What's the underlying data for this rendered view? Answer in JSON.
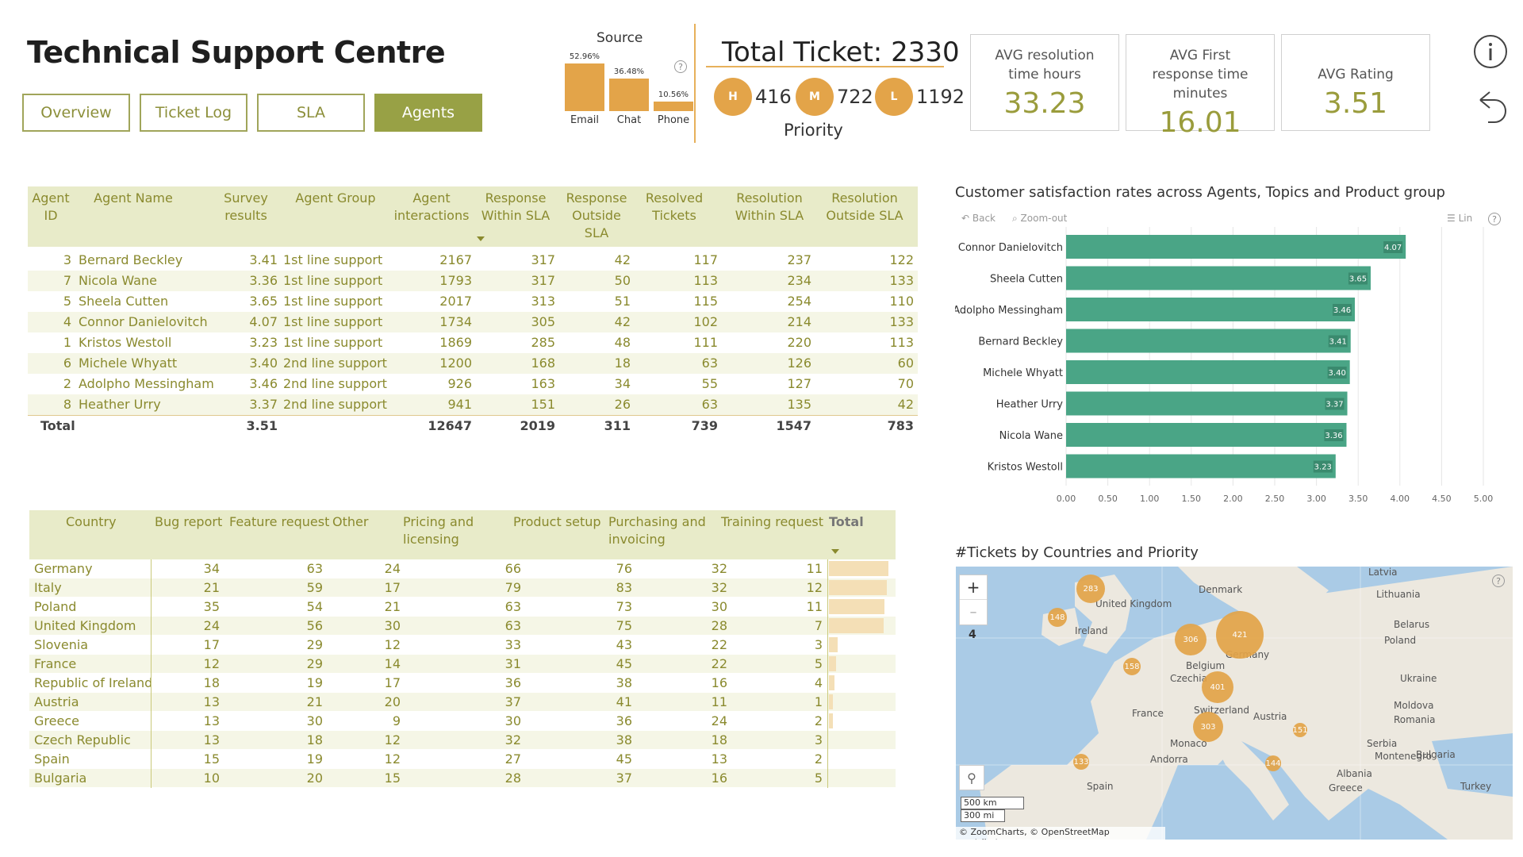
{
  "header": {
    "title": "Technical Support Centre",
    "nav": [
      {
        "label": "Overview",
        "active": false
      },
      {
        "label": "Ticket Log",
        "active": false
      },
      {
        "label": "SLA",
        "active": false
      },
      {
        "label": "Agents",
        "active": true
      }
    ]
  },
  "source": {
    "title": "Source",
    "help": "?",
    "bars": [
      {
        "label": "Email",
        "pct_text": "52.96%",
        "value": 52.96
      },
      {
        "label": "Chat",
        "pct_text": "36.48%",
        "value": 36.48
      },
      {
        "label": "Phone",
        "pct_text": "10.56%",
        "value": 10.56
      }
    ]
  },
  "total_ticket": {
    "label": "Total Ticket: 2330",
    "priority_label": "Priority",
    "priorities": [
      {
        "code": "H",
        "value": "416"
      },
      {
        "code": "M",
        "value": "722"
      },
      {
        "code": "L",
        "value": "1192"
      }
    ]
  },
  "kpis": [
    {
      "label": "AVG resolution time hours",
      "value": "33.23"
    },
    {
      "label": "AVG First response time minutes",
      "value": "16.01"
    },
    {
      "label": "AVG Rating",
      "value": "3.51"
    }
  ],
  "icons": {
    "info": "info-icon",
    "back": "undo-arrow-icon",
    "accent": "#98a145",
    "orange": "#e3a449",
    "teal": "#4aa586"
  },
  "agent_table": {
    "headers": [
      "Agent ID",
      "Agent Name",
      "Survey results",
      "Agent Group",
      "Agent interactions",
      "Response Within SLA",
      "Response Outside SLA",
      "Resolved Tickets",
      "Resolution Within SLA",
      "Resolution Outside SLA"
    ],
    "rows": [
      [
        "3",
        "Bernard Beckley",
        "3.41",
        "1st line support",
        "2167",
        "317",
        "42",
        "117",
        "237",
        "122"
      ],
      [
        "7",
        "Nicola Wane",
        "3.36",
        "1st line support",
        "1793",
        "317",
        "50",
        "113",
        "234",
        "133"
      ],
      [
        "5",
        "Sheela Cutten",
        "3.65",
        "1st line support",
        "2017",
        "313",
        "51",
        "115",
        "254",
        "110"
      ],
      [
        "4",
        "Connor Danielovitch",
        "4.07",
        "1st line support",
        "1734",
        "305",
        "42",
        "102",
        "214",
        "133"
      ],
      [
        "1",
        "Kristos Westoll",
        "3.23",
        "1st line support",
        "1869",
        "285",
        "48",
        "111",
        "220",
        "113"
      ],
      [
        "6",
        "Michele Whyatt",
        "3.40",
        "2nd line support",
        "1200",
        "168",
        "18",
        "63",
        "126",
        "60"
      ],
      [
        "2",
        "Adolpho Messingham",
        "3.46",
        "2nd line support",
        "926",
        "163",
        "34",
        "55",
        "127",
        "70"
      ],
      [
        "8",
        "Heather Urry",
        "3.37",
        "2nd line support",
        "941",
        "151",
        "26",
        "63",
        "135",
        "42"
      ]
    ],
    "total": [
      "Total",
      "3.51",
      "12647",
      "2019",
      "311",
      "739",
      "1547",
      "783"
    ]
  },
  "country_table": {
    "headers": [
      "Country",
      "Bug report",
      "Feature request",
      "Other",
      "Pricing and licensing",
      "Product setup",
      "Purchasing and invoicing",
      "Training request",
      "Total"
    ],
    "rows": [
      {
        "c": [
          "Germany",
          "34",
          "63",
          "24",
          "66",
          "76",
          "32",
          "11"
        ],
        "total_frac": 0.96
      },
      {
        "c": [
          "Italy",
          "21",
          "59",
          "17",
          "79",
          "83",
          "32",
          "12"
        ],
        "total_frac": 0.94
      },
      {
        "c": [
          "Poland",
          "35",
          "54",
          "21",
          "63",
          "73",
          "30",
          "11"
        ],
        "total_frac": 0.9
      },
      {
        "c": [
          "United Kingdom",
          "24",
          "56",
          "30",
          "63",
          "75",
          "28",
          "7"
        ],
        "total_frac": 0.88
      },
      {
        "c": [
          "Slovenia",
          "17",
          "29",
          "12",
          "33",
          "43",
          "22",
          "3"
        ],
        "total_frac": 0.14
      },
      {
        "c": [
          "France",
          "12",
          "29",
          "14",
          "31",
          "45",
          "22",
          "5"
        ],
        "total_frac": 0.11
      },
      {
        "c": [
          "Republic of Ireland",
          "18",
          "19",
          "17",
          "36",
          "38",
          "16",
          "4"
        ],
        "total_frac": 0.09
      },
      {
        "c": [
          "Austria",
          "13",
          "21",
          "20",
          "37",
          "41",
          "11",
          "1"
        ],
        "total_frac": 0.07
      },
      {
        "c": [
          "Greece",
          "13",
          "30",
          "9",
          "30",
          "36",
          "24",
          "2"
        ],
        "total_frac": 0.06
      },
      {
        "c": [
          "Czech Republic",
          "13",
          "18",
          "12",
          "32",
          "38",
          "18",
          "3"
        ],
        "total_frac": 0.0
      },
      {
        "c": [
          "Spain",
          "15",
          "19",
          "12",
          "27",
          "45",
          "13",
          "2"
        ],
        "total_frac": 0.0
      },
      {
        "c": [
          "Bulgaria",
          "10",
          "20",
          "15",
          "28",
          "37",
          "16",
          "5"
        ],
        "total_frac": 0.0
      }
    ]
  },
  "chart_data": {
    "type": "bar",
    "title": "Customer satisfaction rates across Agents, Topics and Product group",
    "toolbar": {
      "back": "Back",
      "zoom": "Zoom-out",
      "scale": "Lin",
      "help": "?"
    },
    "categories": [
      "Connor Danielovitch",
      "Sheela Cutten",
      "Adolpho Messingham",
      "Bernard Beckley",
      "Michele Whyatt",
      "Heather Urry",
      "Nicola Wane",
      "Kristos Westoll"
    ],
    "values": [
      4.07,
      3.65,
      3.46,
      3.41,
      3.4,
      3.37,
      3.36,
      3.23
    ],
    "value_labels": [
      "4.07",
      "3.65",
      "3.46",
      "3.41",
      "3.40",
      "3.37",
      "3.36",
      "3.23"
    ],
    "xlim": [
      0,
      5
    ],
    "xticks": [
      "0.00",
      "0.50",
      "1.00",
      "1.50",
      "2.00",
      "2.50",
      "3.00",
      "3.50",
      "4.00",
      "4.50",
      "5.00"
    ],
    "orientation": "horizontal",
    "grid": true
  },
  "map": {
    "title": "#Tickets by Countries and Priority",
    "zoom_in": "+",
    "zoom_out": "–",
    "zoom_level": "4",
    "scale_km": "500 km",
    "scale_mi": "300 mi",
    "credit": "© ZoomCharts, © OpenStreetMap contributors",
    "places": [
      "Latvia",
      "Lithuania",
      "Denmark",
      "United Kingdom",
      "Ireland",
      "Belarus",
      "Poland",
      "Germany",
      "Belgium",
      "Czechia",
      "Ukraine",
      "France",
      "Switzerland",
      "Austria",
      "Moldova",
      "Romania",
      "Serbia",
      "Monaco",
      "Andorra",
      "Montenegro",
      "Bulgaria",
      "Albania",
      "Spain",
      "Greece",
      "Turkey"
    ],
    "bubbles": [
      {
        "label": "283"
      },
      {
        "label": "148"
      },
      {
        "label": "306"
      },
      {
        "label": "421"
      },
      {
        "label": "158"
      },
      {
        "label": "401"
      },
      {
        "label": "303"
      },
      {
        "label": "133"
      },
      {
        "label": "144"
      },
      {
        "label": "151"
      }
    ]
  }
}
